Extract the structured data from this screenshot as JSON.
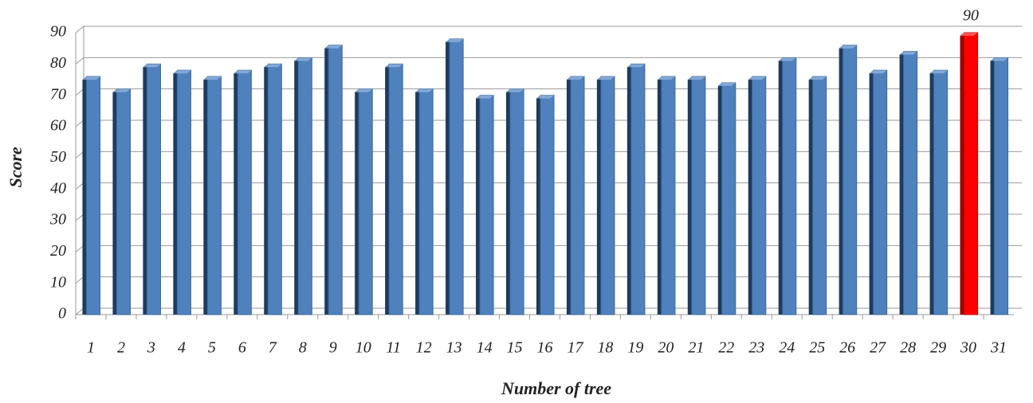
{
  "chart_data": {
    "type": "bar",
    "x_label": "Number of tree",
    "y_label": "Score",
    "categories": [
      "1",
      "2",
      "3",
      "4",
      "5",
      "6",
      "7",
      "8",
      "9",
      "10",
      "11",
      "12",
      "13",
      "14",
      "15",
      "16",
      "17",
      "18",
      "19",
      "20",
      "21",
      "22",
      "23",
      "24",
      "25",
      "26",
      "27",
      "28",
      "29",
      "30",
      "31"
    ],
    "values": [
      76,
      72,
      80,
      78,
      76,
      78,
      80,
      82,
      86,
      72,
      80,
      72,
      88,
      70,
      72,
      70,
      76,
      76,
      80,
      76,
      76,
      74,
      76,
      82,
      76,
      86,
      78,
      84,
      78,
      90,
      82
    ],
    "colors": [
      "#4f81bd",
      "#4f81bd",
      "#4f81bd",
      "#4f81bd",
      "#4f81bd",
      "#4f81bd",
      "#4f81bd",
      "#4f81bd",
      "#4f81bd",
      "#4f81bd",
      "#4f81bd",
      "#4f81bd",
      "#4f81bd",
      "#4f81bd",
      "#4f81bd",
      "#4f81bd",
      "#4f81bd",
      "#4f81bd",
      "#4f81bd",
      "#4f81bd",
      "#4f81bd",
      "#4f81bd",
      "#4f81bd",
      "#4f81bd",
      "#4f81bd",
      "#4f81bd",
      "#4f81bd",
      "#4f81bd",
      "#4f81bd",
      "#ff0000",
      "#4f81bd"
    ],
    "labeled_index": 29,
    "ylim": [
      0,
      90
    ],
    "yticks": [
      0,
      10,
      20,
      30,
      40,
      50,
      60,
      70,
      80,
      90
    ],
    "grid": true
  }
}
